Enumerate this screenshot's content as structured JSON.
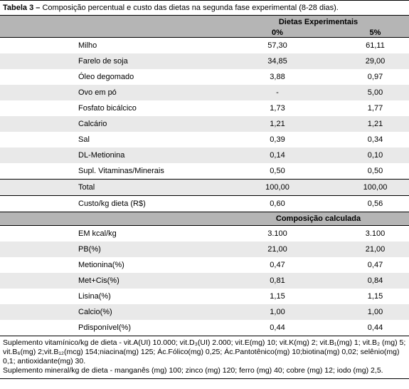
{
  "title_bold": "Tabela 3 –",
  "title_rest": " Composição percentual e custo das dietas na segunda fase experimental (8-28 dias).",
  "header_group": "Dietas Experimentais",
  "col1": "0%",
  "col2": "5%",
  "rows_ingredients": [
    {
      "label": "Milho",
      "v1": "57,30",
      "v2": "61,11"
    },
    {
      "label": "Farelo de soja",
      "v1": "34,85",
      "v2": "29,00"
    },
    {
      "label": "Óleo degomado",
      "v1": "3,88",
      "v2": "0,97"
    },
    {
      "label": "Ovo em pó",
      "v1": "-",
      "v2": "5,00"
    },
    {
      "label": "Fosfato bicálcico",
      "v1": "1,73",
      "v2": "1,77"
    },
    {
      "label": "Calcário",
      "v1": "1,21",
      "v2": "1,21"
    },
    {
      "label": "Sal",
      "v1": "0,39",
      "v2": "0,34"
    },
    {
      "label": "DL-Metionina",
      "v1": "0,14",
      "v2": "0,10"
    },
    {
      "label": "Supl. Vitaminas/Minerais",
      "v1": "0,50",
      "v2": "0,50"
    }
  ],
  "total_row": {
    "label": "Total",
    "v1": "100,00",
    "v2": "100,00"
  },
  "cost_row": {
    "label": "Custo/kg dieta (R$)",
    "v1": "0,60",
    "v2": "0,56"
  },
  "section2_title": "Composição calculada",
  "rows_composition": [
    {
      "label": "EM kcal/kg",
      "v1": "3.100",
      "v2": "3.100"
    },
    {
      "label": "PB(%)",
      "v1": "21,00",
      "v2": "21,00"
    },
    {
      "label": "Metionina(%)",
      "v1": "0,47",
      "v2": "0,47"
    },
    {
      "label": "Met+Cis(%)",
      "v1": "0,81",
      "v2": "0,84"
    },
    {
      "label": "Lisina(%)",
      "v1": "1,15",
      "v2": "1,15"
    },
    {
      "label": "Calcio(%)",
      "v1": "1,00",
      "v2": "1,00"
    },
    {
      "label": "Pdisponível(%)",
      "v1": "0,44",
      "v2": "0,44"
    }
  ],
  "footnote1": "Suplemento vitamínico/kg de dieta - vit.A(UI) 10.000; vit.D₃(UI) 2.000; vit.E(mg) 10; vit.K(mg) 2; vit.B₁(mg) 1; vit.B₂ (mg) 5; vit.B₆(mg) 2;vit.B₁₂(mcg) 154;niacina(mg) 125; Ác.Fólico(mg) 0,25; Ác.Pantotênico(mg) 10;biotina(mg) 0,02; selênio(mg) 0,1; antioxidante(mg) 30.",
  "footnote2": "Suplemento mineral/kg de dieta - manganês (mg) 100; zinco (mg) 120; ferro (mg) 40; cobre (mg) 12; iodo (mg)  2,5."
}
